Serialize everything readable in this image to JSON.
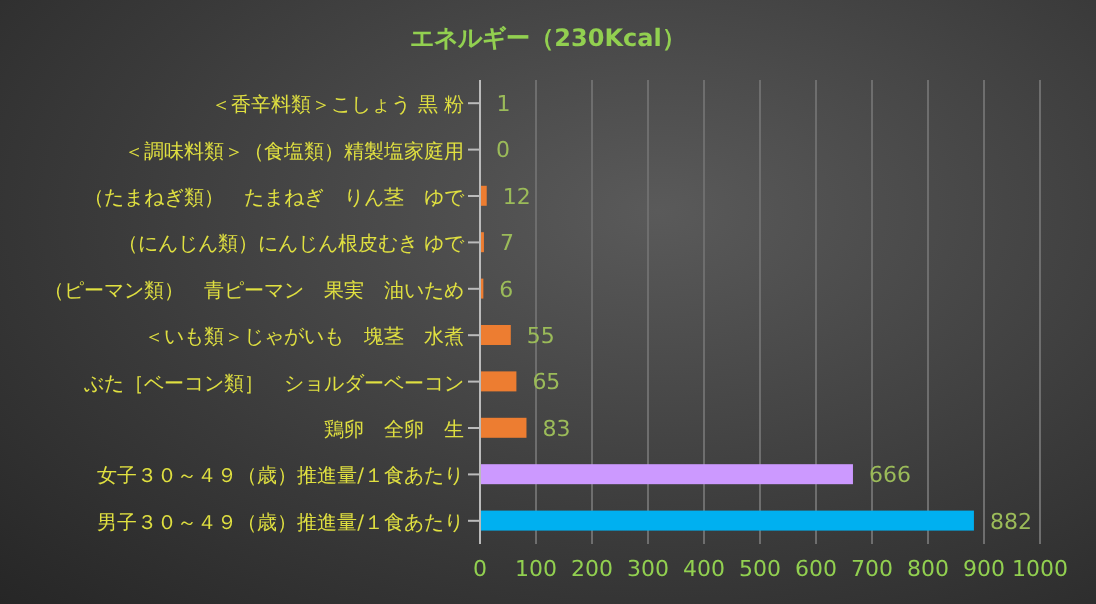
{
  "chart_data": {
    "type": "bar",
    "orientation": "horizontal",
    "title": "エネルギー（230Kcal）",
    "categories": [
      "＜香辛料類＞こしょう 黒 粉",
      "＜調味料類＞（食塩類）精製塩家庭用",
      "（たまねぎ類）　たまねぎ　りん茎　ゆで",
      "（にんじん類）にんじん根皮むき ゆで",
      "（ピーマン類）　青ピーマン　果実　油いため",
      "＜いも類＞じゃがいも　塊茎　水煮",
      "ぶた［ベーコン類］　ショルダーベーコン",
      "鶏卵　全卵　生",
      "女子３０～４９（歳）推進量/１食あたり",
      "男子３０～４９（歳）推進量/１食あたり"
    ],
    "values": [
      1,
      0,
      12,
      7,
      6,
      55,
      65,
      83,
      666,
      882
    ],
    "colors": [
      "#ed7d31",
      "#ed7d31",
      "#ed7d31",
      "#ed7d31",
      "#ed7d31",
      "#ed7d31",
      "#ed7d31",
      "#ed7d31",
      "#cc99ff",
      "#00b0f0"
    ],
    "xlim": [
      0,
      1000
    ],
    "xticks": [
      0,
      100,
      200,
      300,
      400,
      500,
      600,
      700,
      800,
      900,
      1000
    ],
    "grid": "x",
    "data_labels": true
  }
}
